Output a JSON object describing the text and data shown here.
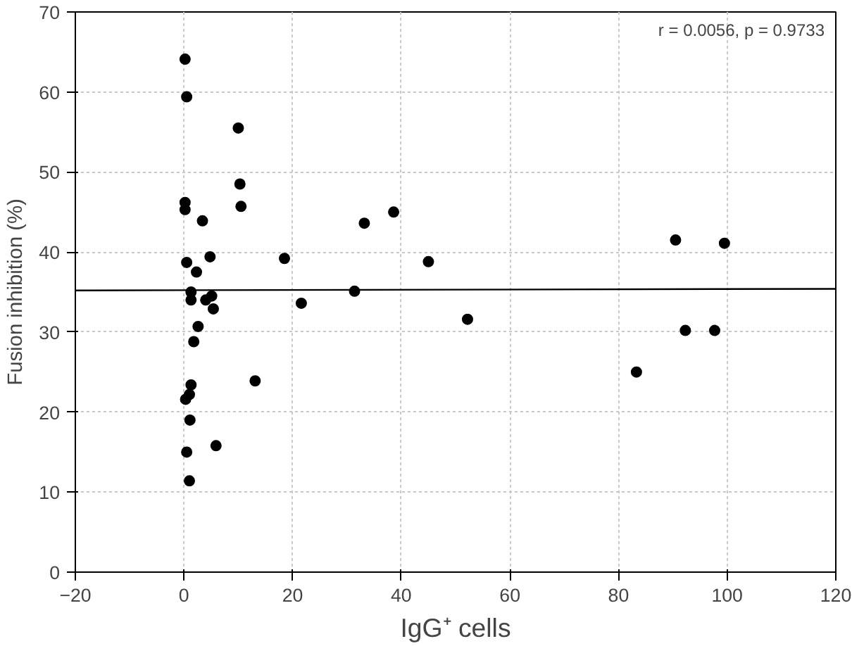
{
  "chart_data": {
    "type": "scatter",
    "xlabel": "IgG⁺ cells",
    "ylabel": "Fusion inhibition (%)",
    "annotations": [
      "r = 0.0056, p = 0.9733"
    ],
    "xlim": [
      -20,
      120
    ],
    "xticks": [
      -20,
      0,
      20,
      40,
      60,
      80,
      100,
      120
    ],
    "ylim": [
      0,
      70
    ],
    "yticks": [
      0,
      10,
      20,
      30,
      40,
      50,
      60,
      70
    ],
    "grid": true,
    "series": [
      {
        "marker": "circle",
        "color": "#000000",
        "x": [
          0.2,
          0.5,
          10,
          10.3,
          10.5,
          0.2,
          0.2,
          3.4,
          4.8,
          0.5,
          2.3,
          1.3,
          1.3,
          4,
          5.1,
          5.4,
          18.5,
          2.6,
          1.8,
          1.3,
          1,
          0.3,
          1.1,
          5.9,
          0.5,
          1,
          13.1,
          21.6,
          31.4,
          33.2,
          38.6,
          45,
          52.2,
          83.3,
          90.5,
          99.5,
          92.3,
          97.7
        ],
        "values": [
          64.1,
          59.4,
          55.5,
          48.5,
          45.7,
          46.2,
          45.3,
          43.9,
          39.4,
          38.7,
          37.5,
          35.0,
          34.0,
          34.0,
          34.5,
          32.9,
          39.2,
          30.7,
          28.8,
          23.4,
          22.2,
          21.6,
          19.0,
          15.8,
          15.0,
          11.4,
          23.9,
          33.6,
          35.1,
          43.6,
          45.0,
          38.8,
          31.6,
          25.0,
          41.5,
          41.1,
          30.2,
          30.2
        ]
      },
      {
        "type": "line",
        "color": "#000000",
        "x": [
          -20,
          120
        ],
        "values": [
          35.2,
          35.4
        ]
      }
    ]
  }
}
